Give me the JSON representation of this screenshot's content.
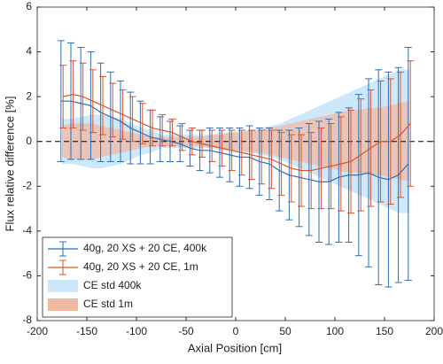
{
  "chart_data": {
    "type": "errorbar",
    "xlabel": "Axial Position [cm]",
    "ylabel": "Flux relative difference [%]",
    "x": [
      -175,
      -165,
      -155,
      -145,
      -135,
      -125,
      -115,
      -105,
      -95,
      -85,
      -75,
      -65,
      -55,
      -45,
      -35,
      -25,
      -15,
      -5,
      5,
      15,
      25,
      35,
      45,
      55,
      65,
      75,
      85,
      95,
      105,
      115,
      125,
      135,
      145,
      155,
      165,
      175
    ],
    "xlim": [
      -200,
      200
    ],
    "xticks": [
      -200,
      -150,
      -100,
      -50,
      0,
      50,
      100,
      150,
      200
    ],
    "ylim": [
      -8,
      6
    ],
    "yticks": [
      -8,
      -6,
      -4,
      -2,
      0,
      2,
      4,
      6
    ],
    "zero_line": true,
    "legend": "lower left",
    "series": [
      {
        "name": "40g, 20 XS + 20 CE, 400k",
        "color": "#2a6fb8",
        "values": [
          1.8,
          1.8,
          1.7,
          1.6,
          1.3,
          1.1,
          0.9,
          0.6,
          0.4,
          0.2,
          0.1,
          0,
          -0.1,
          -0.3,
          -0.4,
          -0.4,
          -0.5,
          -0.6,
          -0.7,
          -0.7,
          -0.9,
          -1.0,
          -1.3,
          -1.5,
          -1.6,
          -1.7,
          -1.8,
          -1.8,
          -1.6,
          -1.5,
          -1.5,
          -1.4,
          -1.6,
          -1.7,
          -1.5,
          -1.0
        ],
        "errors": [
          2.7,
          2.6,
          2.5,
          2.4,
          2.2,
          2.0,
          1.8,
          1.6,
          1.4,
          1.2,
          1.0,
          0.9,
          0.8,
          0.8,
          0.9,
          1.0,
          1.1,
          1.2,
          1.3,
          1.4,
          1.5,
          1.6,
          1.8,
          2.0,
          2.2,
          2.5,
          2.7,
          2.8,
          2.9,
          3.0,
          3.6,
          4.2,
          4.8,
          4.8,
          4.8,
          5.2
        ]
      },
      {
        "name": "40g, 20 XS + 20 CE, 1m",
        "color": "#d9532b",
        "values": [
          2.0,
          2.1,
          2.0,
          1.8,
          1.6,
          1.4,
          1.2,
          1.0,
          0.8,
          0.6,
          0.5,
          0.4,
          0.2,
          0,
          -0.1,
          -0.2,
          -0.3,
          -0.4,
          -0.5,
          -0.6,
          -0.7,
          -0.8,
          -1.0,
          -1.2,
          -1.3,
          -1.3,
          -1.2,
          -1.1,
          -1.0,
          -0.9,
          -0.6,
          -0.3,
          0,
          0,
          0.3,
          0.8
        ],
        "errors": [
          1.4,
          1.5,
          1.5,
          1.4,
          1.3,
          1.2,
          1.1,
          1.0,
          0.9,
          0.8,
          0.7,
          0.6,
          0.6,
          0.6,
          0.6,
          0.7,
          0.8,
          0.9,
          1.0,
          1.1,
          1.2,
          1.3,
          1.4,
          1.5,
          1.6,
          1.7,
          1.8,
          1.9,
          2.1,
          2.3,
          2.5,
          2.6,
          2.7,
          2.8,
          2.8,
          2.8
        ]
      }
    ],
    "bands": [
      {
        "name": "CE std 400k",
        "color": "#cde8fa",
        "upper": [
          1.0,
          1.0,
          1.1,
          1.2,
          1.2,
          1.1,
          1.0,
          0.8,
          0.6,
          0.5,
          0.3,
          0.3,
          0.3,
          0.3,
          0.3,
          0.3,
          0.4,
          0.4,
          0.5,
          0.5,
          0.6,
          0.7,
          0.8,
          1.0,
          1.2,
          1.4,
          1.6,
          1.8,
          2.0,
          2.2,
          2.4,
          2.6,
          2.8,
          3.0,
          3.2,
          3.2
        ],
        "lower": [
          -1.0,
          -1.0,
          -1.1,
          -1.2,
          -1.2,
          -1.1,
          -1.0,
          -0.8,
          -0.6,
          -0.5,
          -0.3,
          -0.3,
          -0.3,
          -0.3,
          -0.3,
          -0.3,
          -0.4,
          -0.4,
          -0.5,
          -0.5,
          -0.6,
          -0.7,
          -0.8,
          -1.0,
          -1.2,
          -1.4,
          -1.6,
          -1.8,
          -2.0,
          -2.2,
          -2.4,
          -2.6,
          -2.8,
          -3.0,
          -3.2,
          -3.2
        ]
      },
      {
        "name": "CE std 1m",
        "color": "#f0b9a2",
        "upper": [
          0.7,
          0.8,
          0.8,
          0.8,
          0.7,
          0.6,
          0.5,
          0.4,
          0.3,
          0.2,
          0.2,
          0.2,
          0.2,
          0.2,
          0.2,
          0.3,
          0.3,
          0.4,
          0.4,
          0.5,
          0.5,
          0.6,
          0.7,
          0.8,
          0.9,
          1.0,
          1.1,
          1.2,
          1.3,
          1.4,
          1.4,
          1.5,
          1.5,
          1.6,
          1.7,
          1.8
        ],
        "lower": [
          -0.7,
          -0.8,
          -0.8,
          -0.8,
          -0.7,
          -0.6,
          -0.5,
          -0.4,
          -0.3,
          -0.2,
          -0.2,
          -0.2,
          -0.2,
          -0.2,
          -0.2,
          -0.3,
          -0.3,
          -0.4,
          -0.4,
          -0.5,
          -0.5,
          -0.6,
          -0.7,
          -0.8,
          -0.9,
          -1.0,
          -1.1,
          -1.2,
          -1.3,
          -1.4,
          -1.4,
          -1.5,
          -1.5,
          -1.6,
          -1.7,
          -1.8
        ]
      }
    ]
  }
}
